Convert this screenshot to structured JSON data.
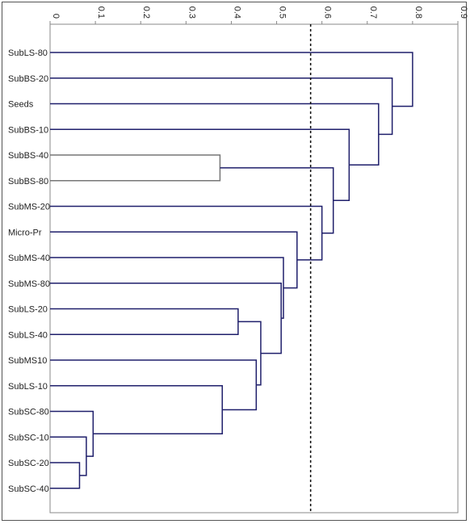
{
  "chart_data": {
    "type": "dendrogram",
    "orientation": "horizontal",
    "axis_position": "top",
    "xlim": [
      0,
      0.9
    ],
    "xticks": [
      "0",
      "0.1",
      "0.2",
      "0.3",
      "0.4",
      "0.5",
      "0.6",
      "0.7",
      "0.8",
      "0.9"
    ],
    "threshold": 0.575,
    "leaves": [
      "SubLS-80",
      "SubBS-20",
      "Seeds",
      "SubBS-10",
      "SubBS-40",
      "SubBS-80",
      "SubMS-20",
      "Micro-Pr",
      "SubMS-40",
      "SubMS-80",
      "SubLS-20",
      "SubLS-40",
      "SubMS10",
      "SubLS-10",
      "SubSC-80",
      "SubSC-10",
      "SubSC-20",
      "SubSC-40"
    ],
    "merges": [
      {
        "a": "SubSC-20",
        "b": "SubSC-40",
        "height": 0.065
      },
      {
        "a": "SubSC-10",
        "b": "m1",
        "height": 0.08
      },
      {
        "a": "SubSC-80",
        "b": "m2",
        "height": 0.095
      },
      {
        "a": "SubLS-10",
        "b": "m3",
        "height": 0.38
      },
      {
        "a": "SubBS-40",
        "b": "SubBS-80",
        "height": 0.375
      },
      {
        "a": "SubLS-20",
        "b": "SubLS-40",
        "height": 0.415
      },
      {
        "a": "SubMS10",
        "b": "m4",
        "height": 0.455
      },
      {
        "a": "m6",
        "b": "m7",
        "height": 0.465
      },
      {
        "a": "SubMS-80",
        "b": "m8",
        "height": 0.51
      },
      {
        "a": "SubMS-40",
        "b": "m9",
        "height": 0.515
      },
      {
        "a": "Micro-Pr",
        "b": "m10",
        "height": 0.545
      },
      {
        "a": "SubMS-20",
        "b": "m11",
        "height": 0.6
      },
      {
        "a": "m5",
        "b": "m12",
        "height": 0.625
      },
      {
        "a": "SubBS-10",
        "b": "m13",
        "height": 0.66
      },
      {
        "a": "Seeds",
        "b": "m14",
        "height": 0.725
      },
      {
        "a": "SubBS-20",
        "b": "m15",
        "height": 0.755
      },
      {
        "a": "SubLS-80",
        "b": "m16",
        "height": 0.8
      }
    ],
    "colors": {
      "link": "#1f1f6b",
      "link_gray": "#777777",
      "threshold": "#000000",
      "axis": "#888888"
    }
  }
}
